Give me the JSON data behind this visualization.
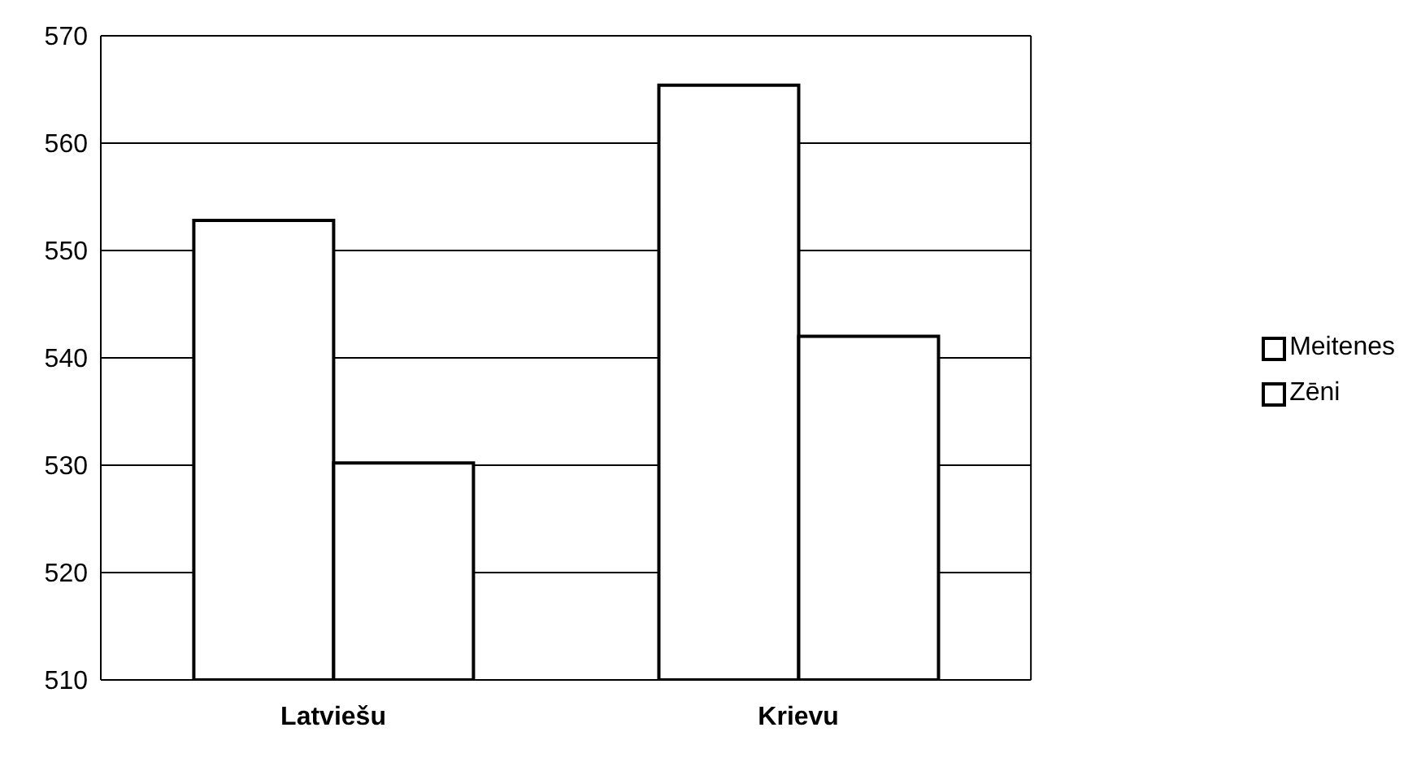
{
  "chart_data": {
    "type": "bar",
    "categories": [
      "Latviešu",
      "Krievu"
    ],
    "series": [
      {
        "name": "Meitenes",
        "color": "#ffffff",
        "values": [
          552.8,
          565.4
        ]
      },
      {
        "name": "Zēni",
        "color": "#ffffff",
        "values": [
          530.2,
          542
        ]
      }
    ],
    "ylim": [
      510,
      570
    ],
    "yticks": [
      510,
      520,
      530,
      540,
      550,
      560,
      570
    ],
    "grid": "y",
    "legend": "right"
  }
}
